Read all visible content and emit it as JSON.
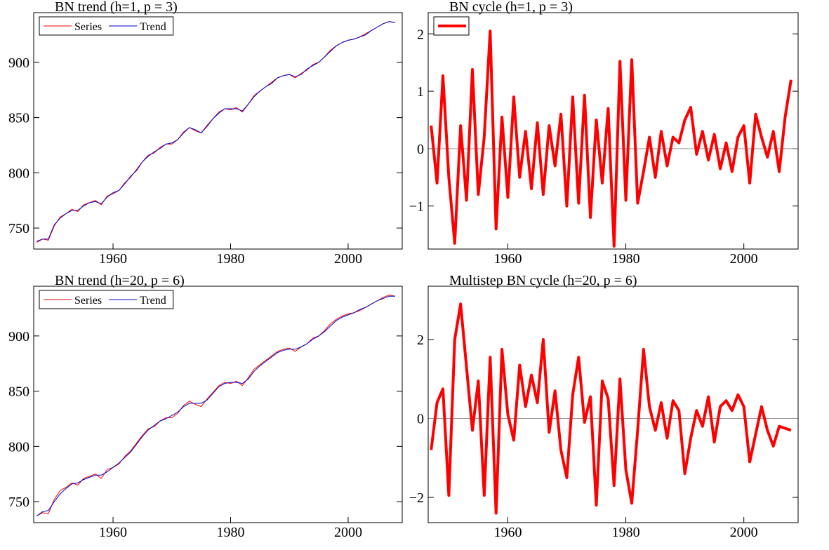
{
  "chart_data": [
    {
      "type": "line",
      "title": "BN trend  (h=1, p = 3)",
      "legend": "upper left",
      "xlim": [
        1946.5,
        2009.2
      ],
      "xticks": [
        1960,
        1980,
        2000
      ],
      "ylim": [
        731,
        945
      ],
      "yticks": [
        750,
        800,
        850,
        900
      ],
      "x": [
        1947,
        1948,
        1949,
        1950,
        1951,
        1952,
        1953,
        1954,
        1955,
        1956,
        1957,
        1958,
        1959,
        1960,
        1961,
        1962,
        1963,
        1964,
        1965,
        1966,
        1967,
        1968,
        1969,
        1970,
        1971,
        1972,
        1973,
        1974,
        1975,
        1976,
        1977,
        1978,
        1979,
        1980,
        1981,
        1982,
        1983,
        1984,
        1985,
        1986,
        1987,
        1988,
        1989,
        1990,
        1991,
        1992,
        1993,
        1994,
        1995,
        1996,
        1997,
        1998,
        1999,
        2000,
        2001,
        2002,
        2003,
        2004,
        2005,
        2006,
        2007,
        2008
      ],
      "series": [
        {
          "name": "Series",
          "color": "#ff0000",
          "width": 1,
          "values": [
            737,
            740,
            739,
            752,
            760,
            763,
            767,
            765,
            771,
            773,
            775,
            771,
            779,
            781,
            784,
            791,
            796,
            803,
            810,
            816,
            818,
            823,
            826,
            826,
            830,
            837,
            841,
            838,
            836,
            843,
            849,
            855,
            858,
            857,
            859,
            855,
            862,
            870,
            874,
            878,
            882,
            886,
            888,
            889,
            886,
            890,
            893,
            898,
            900,
            905,
            911,
            915,
            918,
            920,
            921,
            923,
            926,
            929,
            932,
            935,
            937,
            936
          ]
        },
        {
          "name": "Trend",
          "color": "#0000cc",
          "width": 1,
          "values": [
            738,
            740,
            740,
            753,
            759,
            763,
            766,
            766,
            770,
            773,
            774,
            772,
            778,
            782,
            784,
            790,
            797,
            802,
            810,
            815,
            819,
            822,
            826,
            827,
            830,
            836,
            841,
            839,
            836,
            842,
            849,
            854,
            858,
            858,
            858,
            856,
            862,
            869,
            874,
            878,
            881,
            886,
            888,
            889,
            887,
            889,
            894,
            897,
            900,
            905,
            910,
            915,
            918,
            920,
            921,
            923,
            925,
            929,
            932,
            935,
            937,
            936
          ]
        }
      ]
    },
    {
      "type": "line",
      "title": "BN cycle (h=1, p = 3)",
      "legend": "upper left",
      "zero_line": true,
      "xlim": [
        1946.5,
        2009.2
      ],
      "xticks": [
        1960,
        1980,
        2000
      ],
      "ylim": [
        -1.75,
        2.37
      ],
      "yticks": [
        {
          "value": -1,
          "label": "−1"
        },
        0,
        1,
        2
      ],
      "x": [
        1947,
        1948,
        1949,
        1950,
        1951,
        1952,
        1953,
        1954,
        1955,
        1956,
        1957,
        1958,
        1959,
        1960,
        1961,
        1962,
        1963,
        1964,
        1965,
        1966,
        1967,
        1968,
        1969,
        1970,
        1971,
        1972,
        1973,
        1974,
        1975,
        1976,
        1977,
        1978,
        1979,
        1980,
        1981,
        1982,
        1983,
        1984,
        1985,
        1986,
        1987,
        1988,
        1989,
        1990,
        1991,
        1992,
        1993,
        1994,
        1995,
        1996,
        1997,
        1998,
        1999,
        2000,
        2001,
        2002,
        2003,
        2004,
        2005,
        2006,
        2007,
        2008
      ],
      "series": [
        {
          "color": "#ff0000",
          "width": 4,
          "values": [
            0.4,
            -0.6,
            1.27,
            -0.5,
            -1.65,
            0.4,
            -0.9,
            1.38,
            -0.8,
            0.2,
            2.05,
            -1.4,
            0.55,
            -0.85,
            0.9,
            -0.5,
            0.3,
            -0.7,
            0.45,
            -0.8,
            0.4,
            -0.3,
            0.6,
            -1.0,
            0.9,
            -0.95,
            0.93,
            -1.2,
            0.5,
            -0.6,
            0.7,
            -1.7,
            1.52,
            -0.9,
            1.55,
            -0.95,
            -0.4,
            0.2,
            -0.5,
            0.3,
            -0.3,
            0.2,
            0.1,
            0.5,
            0.72,
            -0.1,
            0.3,
            -0.2,
            0.25,
            -0.35,
            0.1,
            -0.4,
            0.2,
            0.4,
            -0.6,
            0.6,
            0.2,
            -0.15,
            0.3,
            -0.4,
            0.55,
            1.2
          ]
        }
      ]
    },
    {
      "type": "line",
      "title": "BN trend (h=20, p = 6)",
      "legend": "upper left",
      "xlim": [
        1946.5,
        2009.2
      ],
      "xticks": [
        1960,
        1980,
        2000
      ],
      "ylim": [
        731,
        945
      ],
      "yticks": [
        750,
        800,
        850,
        900
      ],
      "x": [
        1947,
        1948,
        1949,
        1950,
        1951,
        1952,
        1953,
        1954,
        1955,
        1956,
        1957,
        1958,
        1959,
        1960,
        1961,
        1962,
        1963,
        1964,
        1965,
        1966,
        1967,
        1968,
        1969,
        1970,
        1971,
        1972,
        1973,
        1974,
        1975,
        1976,
        1977,
        1978,
        1979,
        1980,
        1981,
        1982,
        1983,
        1984,
        1985,
        1986,
        1987,
        1988,
        1989,
        1990,
        1991,
        1992,
        1993,
        1994,
        1995,
        1996,
        1997,
        1998,
        1999,
        2000,
        2001,
        2002,
        2003,
        2004,
        2005,
        2006,
        2007,
        2008
      ],
      "series": [
        {
          "name": "Series",
          "color": "#ff0000",
          "width": 1,
          "values": [
            737,
            740,
            739,
            752,
            760,
            763,
            767,
            765,
            771,
            773,
            775,
            771,
            779,
            781,
            784,
            791,
            796,
            803,
            810,
            816,
            818,
            823,
            826,
            826,
            830,
            837,
            841,
            838,
            836,
            843,
            849,
            855,
            858,
            857,
            859,
            855,
            862,
            870,
            874,
            878,
            882,
            886,
            888,
            889,
            886,
            890,
            893,
            898,
            900,
            905,
            911,
            915,
            918,
            920,
            921,
            923,
            926,
            929,
            932,
            935,
            937,
            936
          ]
        },
        {
          "name": "Trend",
          "color": "#0000cc",
          "width": 1,
          "values": [
            737,
            741,
            742,
            750,
            757,
            762,
            766,
            767,
            770,
            772,
            774,
            774,
            777,
            781,
            785,
            790,
            795,
            802,
            809,
            815,
            819,
            823,
            825,
            828,
            831,
            836,
            839,
            839,
            839,
            842,
            848,
            854,
            857,
            858,
            858,
            857,
            861,
            868,
            873,
            877,
            881,
            885,
            887,
            888,
            888,
            890,
            893,
            897,
            900,
            904,
            909,
            914,
            917,
            919,
            921,
            924,
            926,
            929,
            932,
            934,
            936,
            936
          ]
        }
      ]
    },
    {
      "type": "line",
      "title": "Multistep BN cycle (h=20, p = 6)",
      "zero_line": true,
      "xlim": [
        1946.5,
        2009.2
      ],
      "xticks": [
        1960,
        1980,
        2000
      ],
      "ylim": [
        -2.64,
        3.35
      ],
      "yticks": [
        {
          "value": -2,
          "label": "−2"
        },
        0,
        2
      ],
      "x": [
        1947,
        1948,
        1949,
        1950,
        1951,
        1952,
        1953,
        1954,
        1955,
        1956,
        1957,
        1958,
        1959,
        1960,
        1961,
        1962,
        1963,
        1964,
        1965,
        1966,
        1967,
        1968,
        1969,
        1970,
        1971,
        1972,
        1973,
        1974,
        1975,
        1976,
        1977,
        1978,
        1979,
        1980,
        1981,
        1982,
        1983,
        1984,
        1985,
        1986,
        1987,
        1988,
        1989,
        1990,
        1991,
        1992,
        1993,
        1994,
        1995,
        1996,
        1997,
        1998,
        1999,
        2000,
        2001,
        2002,
        2003,
        2004,
        2005,
        2006,
        2007,
        2008
      ],
      "series": [
        {
          "color": "#ff0000",
          "width": 4,
          "values": [
            -0.8,
            0.4,
            0.75,
            -1.95,
            2.0,
            2.9,
            1.3,
            -0.3,
            0.95,
            -1.95,
            1.55,
            -2.4,
            1.75,
            0.1,
            -0.55,
            1.35,
            0.3,
            1.1,
            0.4,
            2.0,
            -0.35,
            0.7,
            -0.8,
            -1.5,
            0.6,
            1.55,
            -0.1,
            0.55,
            -2.2,
            0.95,
            0.5,
            -1.7,
            1.0,
            -1.3,
            -2.15,
            -0.3,
            1.75,
            0.3,
            -0.3,
            0.4,
            -0.5,
            0.45,
            0.2,
            -1.4,
            -0.5,
            0.2,
            -0.2,
            0.55,
            -0.6,
            0.3,
            0.45,
            0.2,
            0.6,
            0.3,
            -1.1,
            -0.4,
            0.3,
            -0.3,
            -0.7,
            -0.2,
            -0.25,
            -0.3
          ]
        }
      ]
    }
  ]
}
